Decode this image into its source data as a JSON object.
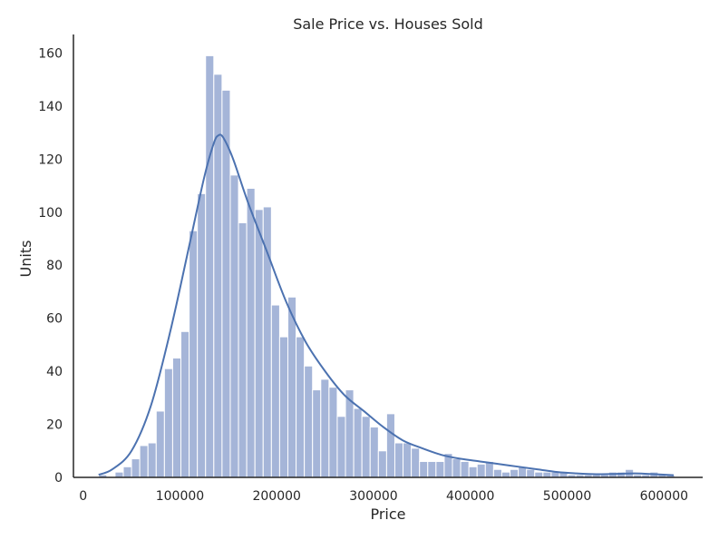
{
  "chart_data": {
    "type": "histogram",
    "title": "Sale Price vs. Houses Sold",
    "xlabel": "Price",
    "ylabel": "Units",
    "xlim": [
      -10000,
      640000
    ],
    "ylim": [
      0,
      167
    ],
    "x_ticks": [
      0,
      100000,
      200000,
      300000,
      400000,
      500000,
      600000
    ],
    "y_ticks": [
      0,
      20,
      40,
      60,
      80,
      100,
      120,
      140,
      160
    ],
    "bin_start": 16000,
    "bin_width": 8500,
    "counts": [
      1,
      0,
      2,
      4,
      7,
      12,
      13,
      25,
      41,
      45,
      55,
      93,
      107,
      159,
      152,
      146,
      114,
      96,
      109,
      101,
      102,
      65,
      53,
      68,
      53,
      42,
      33,
      37,
      34,
      23,
      33,
      26,
      23,
      19,
      10,
      24,
      13,
      13,
      11,
      6,
      6,
      6,
      9,
      7,
      6,
      4,
      5,
      6,
      3,
      2,
      3,
      4,
      3,
      2,
      2,
      2,
      2,
      1,
      1,
      1,
      1,
      1,
      2,
      2,
      3,
      1,
      1,
      2,
      1,
      1
    ],
    "kde": {
      "x": [
        16000,
        30000,
        50000,
        70000,
        90000,
        110000,
        125000,
        135000,
        140000,
        145000,
        155000,
        170000,
        190000,
        210000,
        230000,
        250000,
        270000,
        290000,
        310000,
        330000,
        350000,
        370000,
        390000,
        410000,
        430000,
        450000,
        470000,
        490000,
        510000,
        530000,
        550000,
        570000,
        590000,
        610000
      ],
      "y": [
        1,
        3,
        10,
        27,
        55,
        88,
        113,
        126,
        129,
        128,
        120,
        104,
        85,
        66,
        51,
        40,
        31,
        25,
        19,
        14,
        11,
        8.5,
        7,
        6,
        5,
        4,
        3,
        2,
        1.5,
        1.2,
        1.3,
        1.5,
        1.2,
        0.8
      ]
    }
  }
}
